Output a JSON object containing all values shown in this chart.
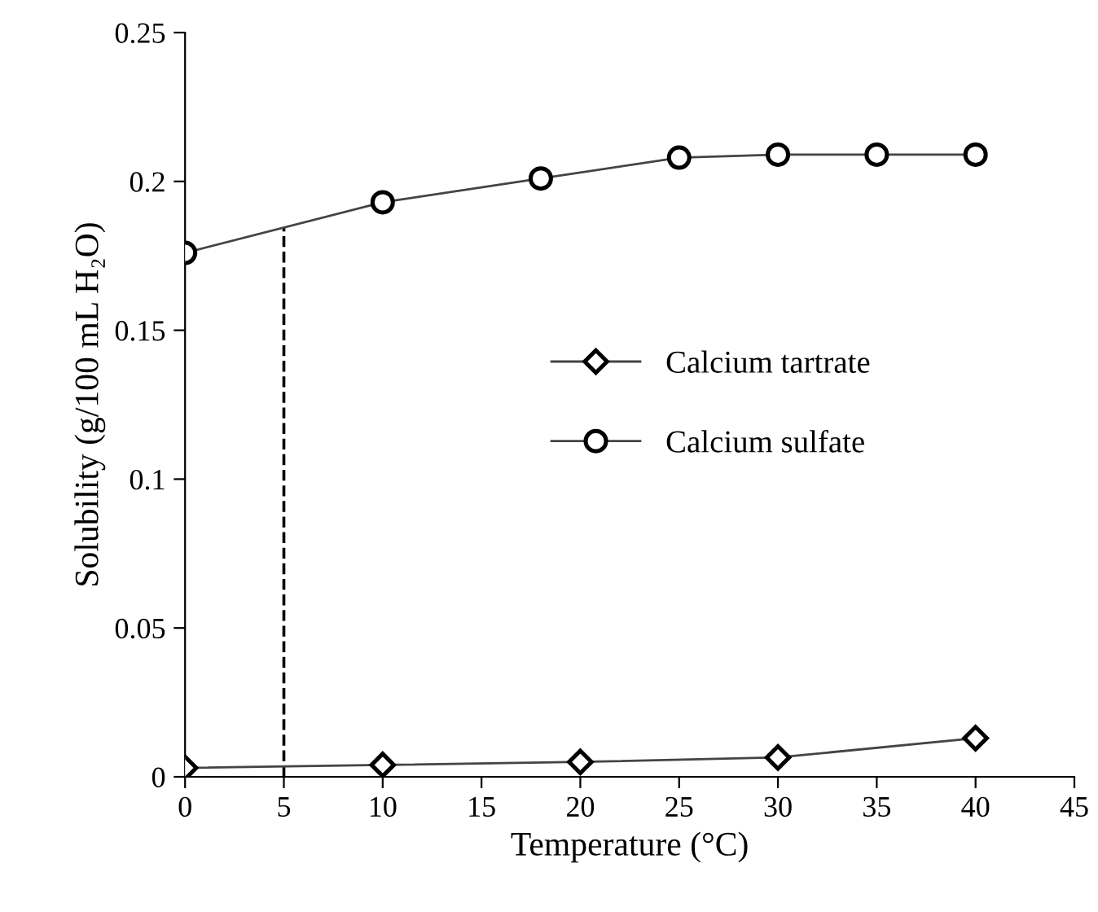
{
  "chart_data": {
    "type": "line",
    "xlabel": "Temperature (°C)",
    "ylabel": "Solubility (g/100 mL H₂O)",
    "xlim": [
      0,
      45
    ],
    "xticks": [
      0,
      5,
      10,
      15,
      20,
      25,
      30,
      35,
      40,
      45
    ],
    "ylim": [
      0,
      0.25
    ],
    "yticks": [
      0,
      0.05,
      0.1,
      0.15,
      0.2,
      0.25
    ],
    "series": [
      {
        "name": "Calcium tartrate",
        "color": "#000000",
        "marker": "diamond",
        "x": [
          0,
          10,
          20,
          30,
          40
        ],
        "values": [
          0.003,
          0.004,
          0.005,
          0.0065,
          0.013
        ]
      },
      {
        "name": "Calcium sulfate",
        "color": "#000000",
        "marker": "circle",
        "x": [
          0,
          10,
          18,
          25,
          30,
          35,
          40
        ],
        "values": [
          0.176,
          0.193,
          0.201,
          0.208,
          0.209,
          0.209,
          0.209
        ]
      }
    ],
    "ref_lines": [
      {
        "axis": "x",
        "value": 5,
        "line_style": "dashed",
        "color": "#000000"
      }
    ],
    "legend": "right",
    "grid": false,
    "line_style": "solid"
  }
}
